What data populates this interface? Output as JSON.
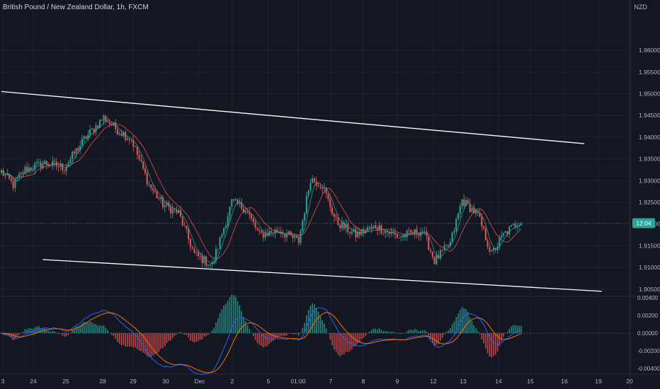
{
  "header": {
    "title": "British Pound / New Zealand Dollar, 1h, FXCM",
    "currency": "NZD"
  },
  "colors": {
    "background": "#131722",
    "up": "#26a69a",
    "down": "#ef5350",
    "grid": "#1e222d",
    "axis_text": "#b2b5be",
    "trendline": "#ffffff",
    "ma_blue": "#2962ff",
    "ma_orange": "#ff6d00",
    "price_line": "#26a69a"
  },
  "chart_data": [
    {
      "type": "candlestick",
      "title": "British Pound / New Zealand Dollar, 1h, FXCM",
      "y_unit": "NZD",
      "ylim": [
        1.9035,
        1.9675
      ],
      "y_ticks": [
        "1.96000",
        "1.95500",
        "1.95000",
        "1.94500",
        "1.94000",
        "1.93500",
        "1.93000",
        "1.92500",
        "1.92000",
        "1.91500",
        "1.91000",
        "1.90500"
      ],
      "x_ticks": [
        "3",
        "24",
        "25",
        "28",
        "29",
        "30",
        "Dec",
        "2",
        "5",
        "01:00",
        "7",
        "8",
        "9",
        "12",
        "13",
        "14",
        "15",
        "16",
        "19",
        "20"
      ],
      "price_label": "12:04",
      "last_price": 1.9202,
      "keypoints": [
        [
          0,
          1.932
        ],
        [
          6,
          1.929
        ],
        [
          12,
          1.9325
        ],
        [
          22,
          1.934
        ],
        [
          32,
          1.933
        ],
        [
          42,
          1.9395
        ],
        [
          52,
          1.9445
        ],
        [
          58,
          1.942
        ],
        [
          66,
          1.9395
        ],
        [
          75,
          1.929
        ],
        [
          82,
          1.9245
        ],
        [
          90,
          1.9225
        ],
        [
          98,
          1.913
        ],
        [
          107,
          1.9105
        ],
        [
          117,
          1.925
        ],
        [
          124,
          1.9235
        ],
        [
          131,
          1.9175
        ],
        [
          141,
          1.9185
        ],
        [
          151,
          1.916
        ],
        [
          157,
          1.9305
        ],
        [
          163,
          1.929
        ],
        [
          170,
          1.9205
        ],
        [
          180,
          1.9175
        ],
        [
          190,
          1.9195
        ],
        [
          202,
          1.917
        ],
        [
          214,
          1.9185
        ],
        [
          220,
          1.9115
        ],
        [
          228,
          1.9155
        ],
        [
          234,
          1.9255
        ],
        [
          242,
          1.922
        ],
        [
          249,
          1.913
        ],
        [
          255,
          1.9175
        ],
        [
          264,
          1.921
        ]
      ],
      "candle_count": 265,
      "trendlines": [
        {
          "name": "upper-channel",
          "from": [
            0,
            1.9505
          ],
          "to": [
            296,
            1.9385
          ]
        },
        {
          "name": "lower-channel",
          "from": [
            21,
            1.9118
          ],
          "to": [
            305,
            1.9045
          ]
        }
      ]
    },
    {
      "type": "histogram",
      "title": "",
      "ylim": [
        -0.0045,
        0.0041
      ],
      "y_ticks": [
        "0.00400",
        "0.00200",
        "0.00000",
        "-0.00200",
        "-0.00400"
      ],
      "series": [
        {
          "values": "macd_line"
        },
        {
          "values": "signal_line"
        }
      ]
    }
  ]
}
